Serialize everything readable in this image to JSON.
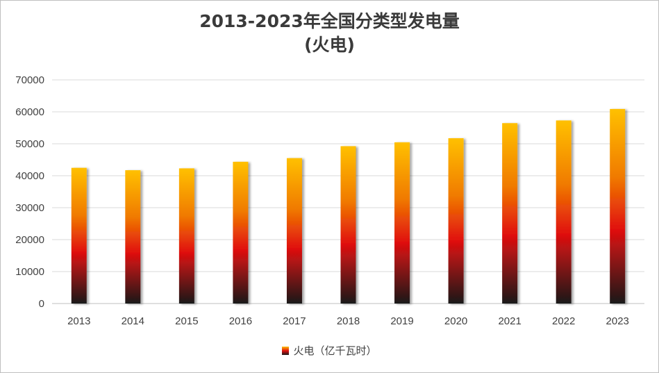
{
  "chart_data": {
    "type": "bar",
    "title": "2013-2023年全国分类型发电量",
    "subtitle": "(火电)",
    "categories": [
      "2013",
      "2014",
      "2015",
      "2016",
      "2017",
      "2018",
      "2019",
      "2020",
      "2021",
      "2022",
      "2023"
    ],
    "series": [
      {
        "name": "火电（亿千瓦时）",
        "values": [
          42470,
          41731,
          42307,
          44371,
          45513,
          49249,
          50465,
          51743,
          56463,
          57307,
          60897
        ]
      }
    ],
    "ylim": [
      0,
      70000
    ],
    "yticks": [
      0,
      10000,
      20000,
      30000,
      40000,
      50000,
      60000,
      70000
    ],
    "grid": true,
    "legend_position": "bottom",
    "colors": {
      "bar_top": "#ffc000",
      "bar_mid": "#e01010",
      "bar_bottom": "#1a1a1a",
      "grid": "#d9d9d9",
      "text": "#404040"
    }
  }
}
